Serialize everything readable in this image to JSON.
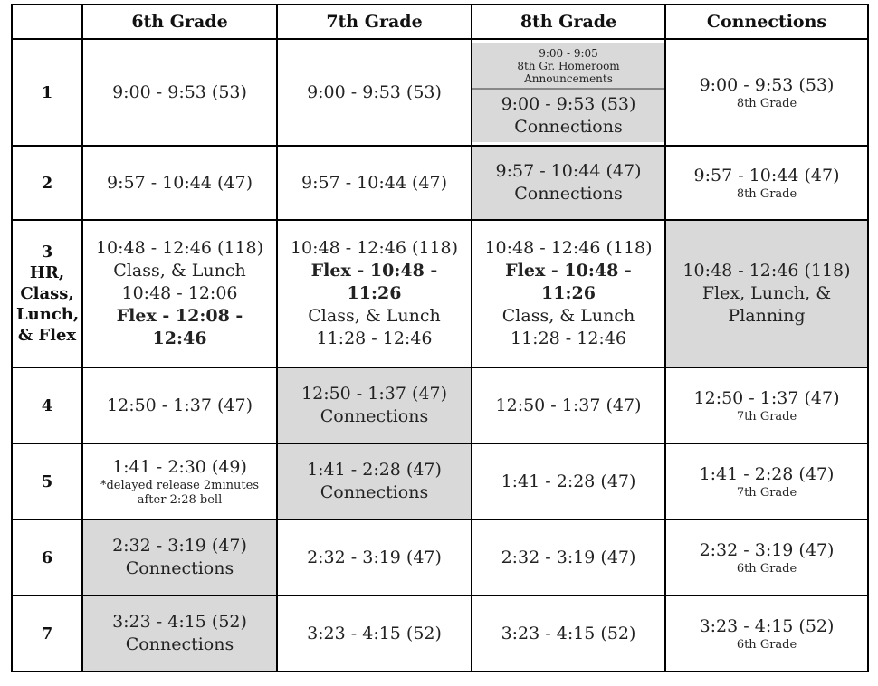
{
  "headers": [
    "",
    "6th Grade",
    "7th Grade",
    "8th Grade",
    "Connections"
  ],
  "rows": {
    "r1": {
      "period": "1",
      "g6": "9:00 - 9:53 (53)",
      "g7": "9:00 - 9:53 (53)",
      "g8_top": [
        "9:00 - 9:05",
        "8th Gr. Homeroom",
        "Announcements"
      ],
      "g8_bottom": [
        "9:00 - 9:53 (53)",
        "Connections"
      ],
      "conn": "9:00 - 9:53 (53)",
      "conn_sub": "8th Grade"
    },
    "r2": {
      "period": "2",
      "g6": "9:57 - 10:44 (47)",
      "g7": "9:57 - 10:44 (47)",
      "g8": [
        "9:57 - 10:44 (47)",
        "Connections"
      ],
      "conn": "9:57 - 10:44 (47)",
      "conn_sub": "8th Grade"
    },
    "r3": {
      "period": [
        "3",
        "HR,",
        "Class,",
        "Lunch,",
        "& Flex"
      ],
      "g6": [
        "10:48 - 12:46 (118)",
        "Class, & Lunch",
        "10:48 - 12:06",
        "Flex - 12:08 - 12:46"
      ],
      "g7": [
        "10:48 - 12:46 (118)",
        "Flex - 10:48 - 11:26",
        "Class, & Lunch",
        "11:28 - 12:46"
      ],
      "g8": [
        "10:48 - 12:46 (118)",
        "Flex - 10:48 - 11:26",
        "Class, & Lunch",
        "11:28 - 12:46"
      ],
      "conn": [
        "10:48 - 12:46 (118)",
        "Flex, Lunch, &",
        "Planning"
      ]
    },
    "r4": {
      "period": "4",
      "g6": "12:50 - 1:37 (47)",
      "g7": [
        "12:50 - 1:37 (47)",
        "Connections"
      ],
      "g8": "12:50 - 1:37 (47)",
      "conn": "12:50 - 1:37 (47)",
      "conn_sub": "7th Grade"
    },
    "r5": {
      "period": "5",
      "g6": "1:41 - 2:30 (49)",
      "g6_note": [
        "*delayed release 2minutes",
        "after 2:28 bell"
      ],
      "g7": [
        "1:41 - 2:28 (47)",
        "Connections"
      ],
      "g8": "1:41 - 2:28 (47)",
      "conn": "1:41 - 2:28 (47)",
      "conn_sub": "7th Grade"
    },
    "r6": {
      "period": "6",
      "g6": [
        "2:32 - 3:19 (47)",
        "Connections"
      ],
      "g7": "2:32 - 3:19 (47)",
      "g8": "2:32 - 3:19 (47)",
      "conn": "2:32 - 3:19 (47)",
      "conn_sub": "6th Grade"
    },
    "r7": {
      "period": "7",
      "g6": [
        "3:23 - 4:15 (52)",
        "Connections"
      ],
      "g7": "3:23 - 4:15 (52)",
      "g8": "3:23 - 4:15 (52)",
      "conn": "3:23 - 4:15 (52)",
      "conn_sub": "6th Grade"
    }
  },
  "colors": {
    "shade": "#d9d9d9",
    "border": "#000000"
  }
}
